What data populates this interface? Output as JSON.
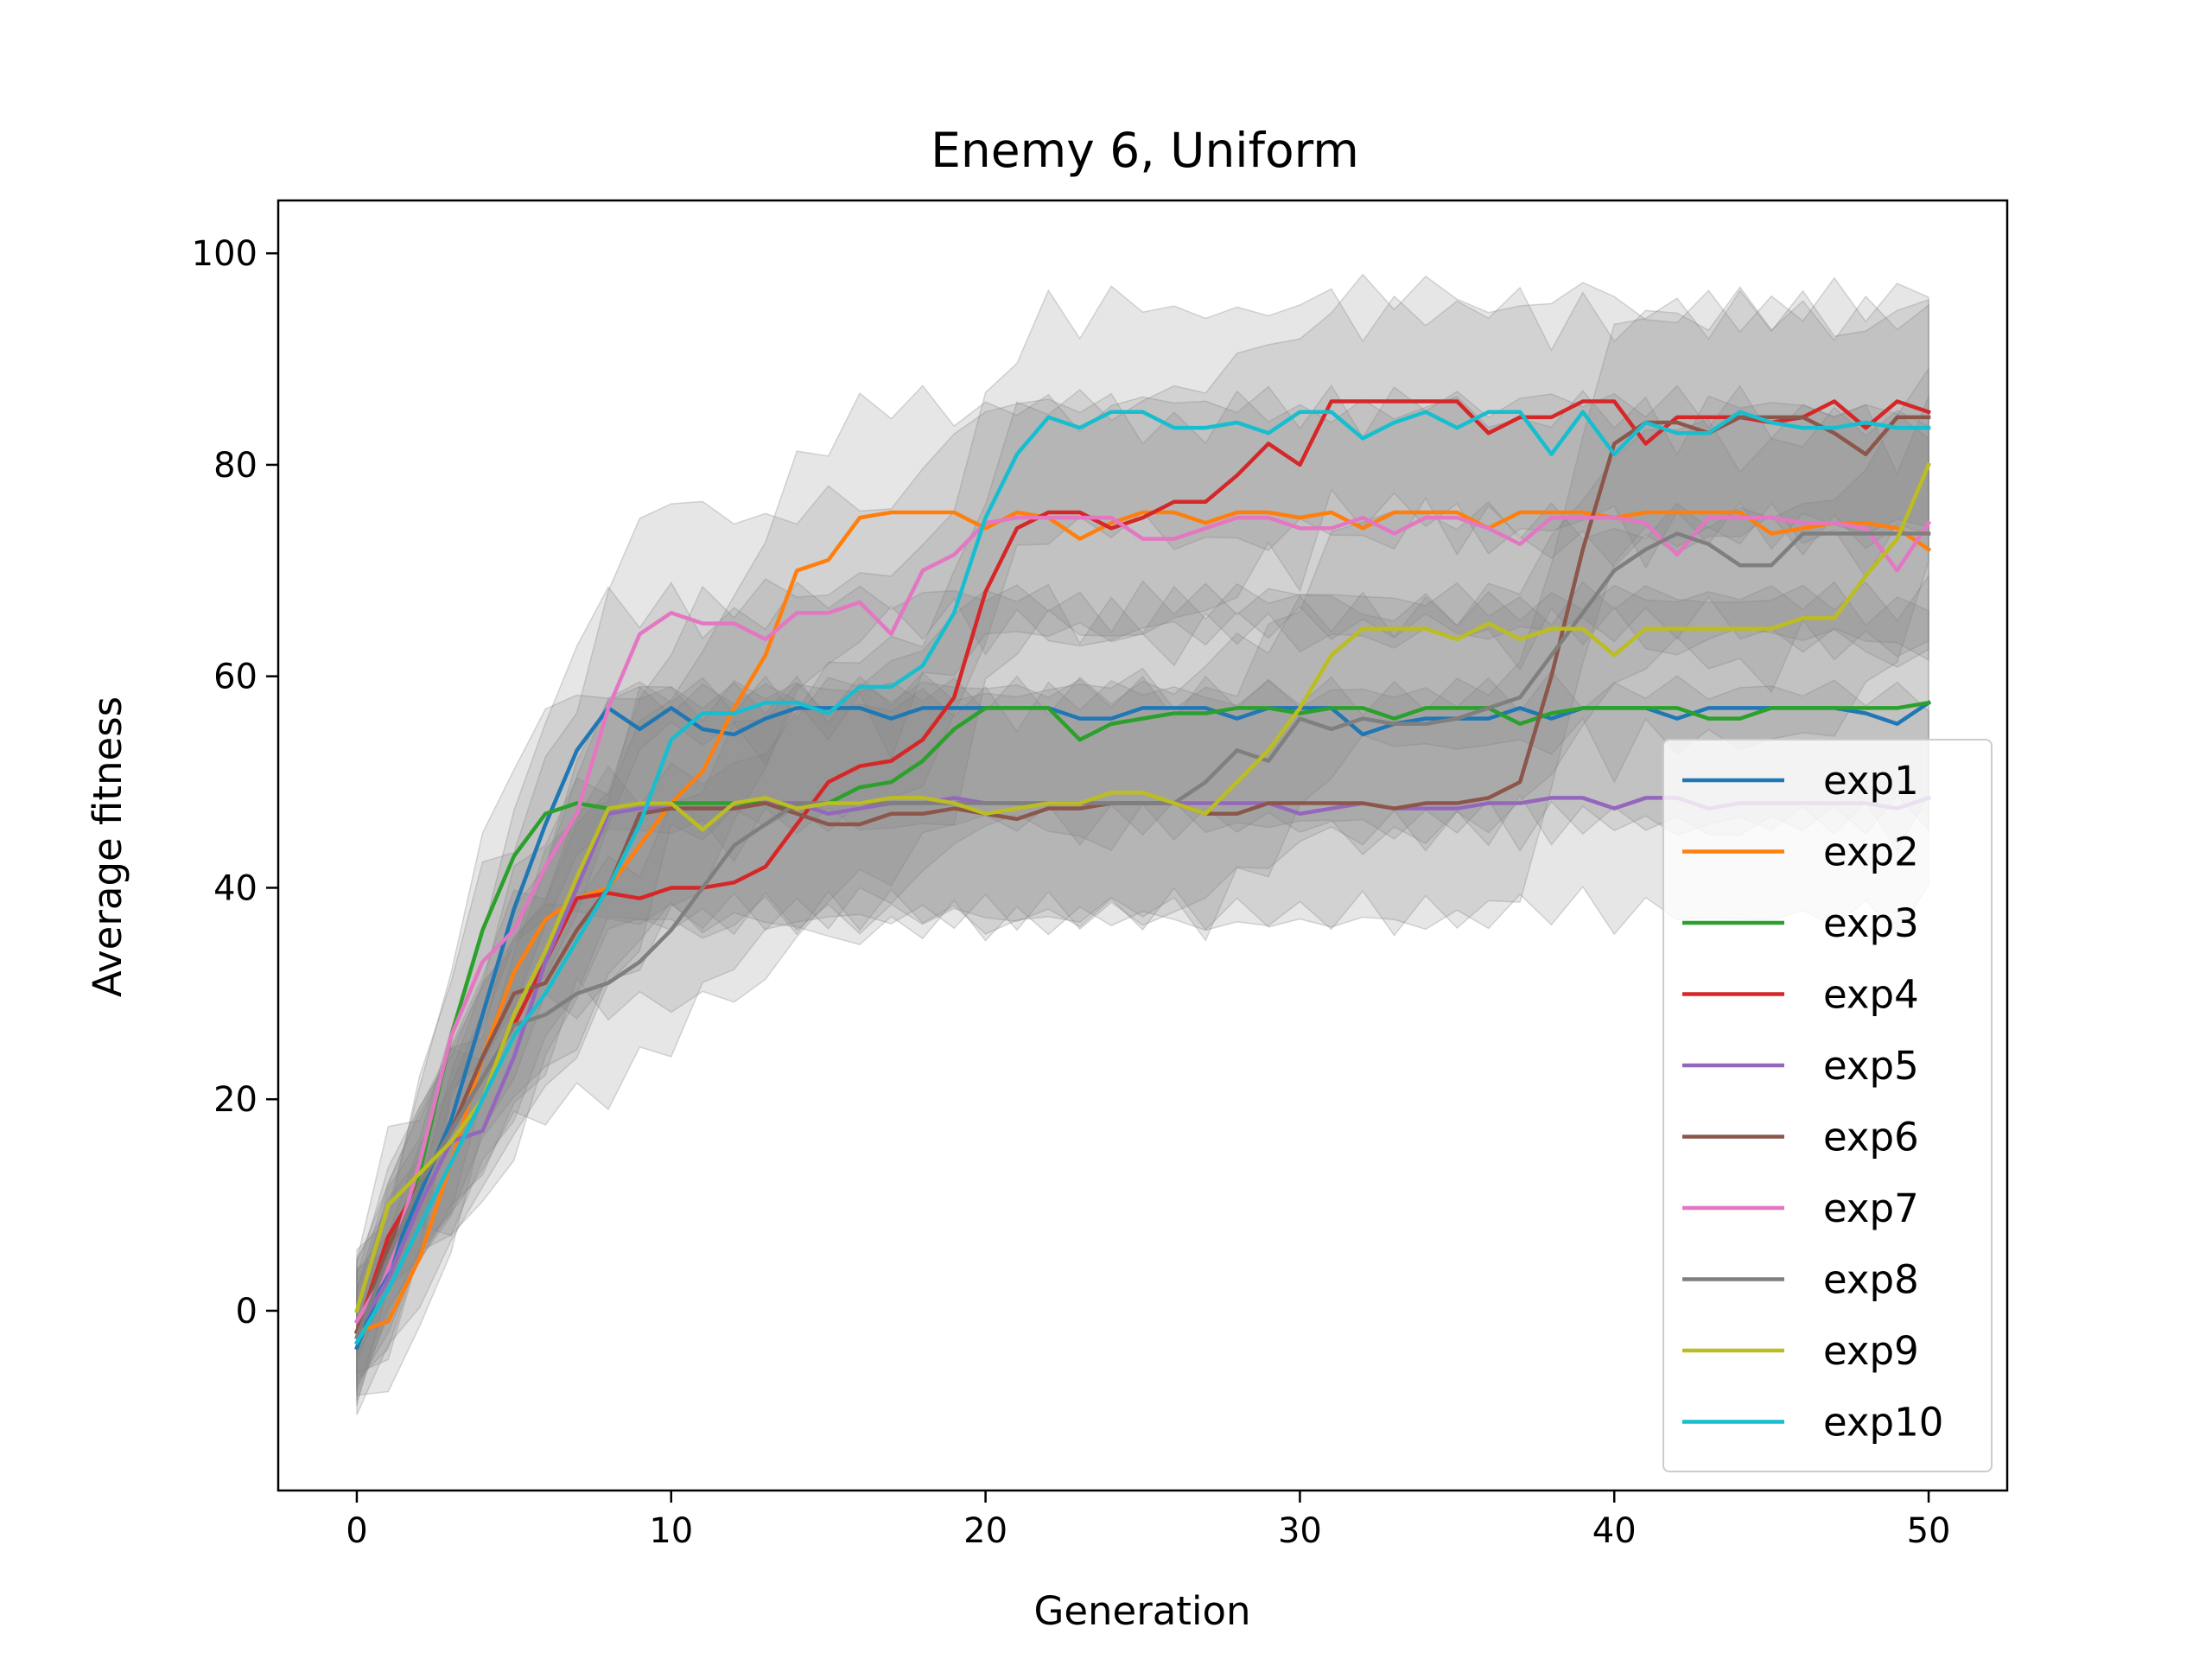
{
  "chart_data": {
    "type": "line",
    "title": "Enemy 6, Uniform",
    "xlabel": "Generation",
    "ylabel": "Average fitness",
    "xlim": [
      -2.5,
      52.5
    ],
    "ylim": [
      -17,
      105
    ],
    "xticks": [
      0,
      10,
      20,
      30,
      40,
      50
    ],
    "yticks": [
      0,
      20,
      40,
      60,
      80,
      100
    ],
    "grid": false,
    "legend_position": "lower-right",
    "band_color": "#808080",
    "x": [
      0,
      1,
      2,
      3,
      4,
      5,
      6,
      7,
      8,
      9,
      10,
      11,
      12,
      13,
      14,
      15,
      16,
      17,
      18,
      19,
      20,
      21,
      22,
      23,
      24,
      25,
      26,
      27,
      28,
      29,
      30,
      31,
      32,
      33,
      34,
      35,
      36,
      37,
      38,
      39,
      40,
      41,
      42,
      43,
      44,
      45,
      46,
      47,
      48,
      49,
      50
    ],
    "series": [
      {
        "name": "exp1",
        "color": "#1f77b4",
        "values": [
          -3.5,
          4,
          11,
          18,
          28,
          38,
          46,
          53,
          57,
          55,
          57,
          55,
          54.5,
          56,
          57,
          57,
          57,
          56,
          57,
          57,
          57,
          57,
          57,
          56,
          56,
          57,
          57,
          57,
          56,
          57,
          57,
          57,
          54.5,
          55.5,
          56,
          56,
          56,
          57,
          56,
          57,
          57,
          57,
          56,
          57,
          57,
          57,
          57,
          57,
          56.5,
          55.5,
          57.5
        ]
      },
      {
        "name": "exp2",
        "color": "#ff7f0e",
        "values": [
          -2,
          -1,
          5,
          14,
          24,
          32,
          37,
          39,
          40,
          44,
          48,
          51,
          57,
          62,
          70,
          71,
          75,
          75.5,
          75.5,
          75.5,
          74,
          75.5,
          75,
          73,
          74.5,
          75.5,
          75.5,
          74.5,
          75.5,
          75.5,
          75,
          75.5,
          74,
          75.5,
          75.5,
          75.5,
          74,
          75.5,
          75.5,
          75.5,
          75,
          75.5,
          75.5,
          75.5,
          75.5,
          73.5,
          74,
          74.5,
          74.5,
          74,
          72
        ]
      },
      {
        "name": "exp3",
        "color": "#2ca02c",
        "values": [
          -2,
          6,
          13,
          26,
          36,
          43,
          47,
          48,
          47.5,
          48,
          48,
          48,
          48,
          48,
          47.5,
          48,
          49.5,
          50,
          52,
          55,
          57,
          57,
          57,
          54,
          55.5,
          56,
          56.5,
          56.5,
          57,
          57,
          56.5,
          57,
          57,
          56,
          57,
          57,
          57,
          55.5,
          56.5,
          57,
          57,
          57,
          57,
          56,
          56,
          57,
          57,
          57,
          57,
          57,
          57.5
        ]
      },
      {
        "name": "exp4",
        "color": "#d62728",
        "values": [
          -2,
          7,
          12,
          17,
          22,
          27,
          33,
          39,
          39.5,
          39,
          40,
          40,
          40.5,
          42,
          46,
          50,
          51.5,
          52,
          54,
          58,
          68,
          74,
          75.5,
          75.5,
          74,
          75,
          76.5,
          76.5,
          79,
          82,
          80,
          86,
          86,
          86,
          86,
          86,
          83,
          84.5,
          84.5,
          86,
          86,
          82,
          84.5,
          84.5,
          84.5,
          84,
          84.5,
          86,
          83.5,
          86,
          85
        ]
      },
      {
        "name": "exp5",
        "color": "#9467bd",
        "values": [
          -2,
          3,
          10,
          16,
          17,
          24,
          33,
          40,
          47,
          47.5,
          47.5,
          47.5,
          47.5,
          48,
          48,
          47,
          47.5,
          48,
          48,
          48.5,
          48,
          48,
          48,
          48,
          48,
          48,
          48,
          48,
          48,
          48,
          47,
          47.5,
          48,
          47.5,
          47.5,
          47.5,
          48,
          48,
          48.5,
          48.5,
          47.5,
          48.5,
          48.5,
          47.5,
          48,
          48,
          48,
          48,
          48,
          47.5,
          48.5
        ]
      },
      {
        "name": "exp6",
        "color": "#8c564b",
        "values": [
          -2,
          6,
          12,
          17,
          24,
          30,
          31,
          36,
          40,
          47,
          47.5,
          47.5,
          47.5,
          48,
          47,
          46,
          46,
          47,
          47,
          47.5,
          47,
          46.5,
          47.5,
          47.5,
          48,
          48,
          48,
          47,
          47,
          48,
          48,
          48,
          48,
          47.5,
          48,
          48,
          48.5,
          50,
          60,
          72,
          82,
          84,
          84,
          83,
          84.5,
          84.5,
          84.5,
          83,
          81,
          84.5,
          84.5
        ]
      },
      {
        "name": "exp7",
        "color": "#e377c2",
        "values": [
          -1,
          4,
          14,
          26,
          33,
          36,
          42,
          47,
          57,
          64,
          66,
          65,
          65,
          63.5,
          66,
          66,
          67,
          64,
          70,
          71.5,
          74.5,
          75,
          75,
          75,
          75,
          73,
          73,
          74,
          75,
          75,
          74,
          74,
          75,
          73.5,
          75,
          75,
          74,
          72.5,
          75,
          75,
          75,
          74.5,
          71.5,
          75,
          75,
          75,
          74.5,
          74.5,
          74,
          70,
          74.5
        ]
      },
      {
        "name": "exp8",
        "color": "#7f7f7f",
        "values": [
          -2.5,
          5,
          12,
          17,
          22,
          27,
          28,
          30,
          31,
          33,
          36,
          40,
          44,
          46,
          48,
          48,
          48,
          48,
          48,
          48,
          48,
          48,
          48,
          48,
          48,
          48,
          48,
          50,
          53,
          52,
          56,
          55,
          56,
          55.5,
          55.5,
          56,
          57,
          58,
          62,
          66,
          70,
          72,
          73.5,
          72.5,
          70.5,
          70.5,
          73.5,
          73.5,
          73.5,
          73.5,
          73.5
        ]
      },
      {
        "name": "exp9",
        "color": "#bcbd22",
        "values": [
          0,
          10,
          13,
          16,
          20,
          28,
          34,
          41,
          47.5,
          48,
          48,
          45.5,
          48,
          48.5,
          47.5,
          48,
          48,
          48.5,
          48.5,
          48,
          47,
          47.5,
          48,
          48,
          49,
          49,
          48,
          47,
          50,
          53,
          57,
          62,
          64.5,
          64.5,
          64.5,
          63.5,
          65,
          63.5,
          64.5,
          64.5,
          62,
          64.5,
          64.5,
          64.5,
          64.5,
          64.5,
          65.5,
          65.5,
          69.5,
          73,
          80
        ]
      },
      {
        "name": "exp10",
        "color": "#17becf",
        "values": [
          -3,
          2,
          8,
          14,
          20,
          26,
          30,
          35,
          40,
          46,
          54,
          56.5,
          56.5,
          57.5,
          57.5,
          56.5,
          59,
          59,
          61,
          66,
          75,
          81,
          84.5,
          83.5,
          85,
          85,
          83.5,
          83.5,
          84,
          83,
          85,
          85,
          82.5,
          84,
          85,
          83.5,
          85,
          85,
          81,
          85,
          81,
          84,
          83,
          83,
          85,
          84,
          83.5,
          83.5,
          84,
          83.5,
          83.5
        ]
      }
    ]
  }
}
